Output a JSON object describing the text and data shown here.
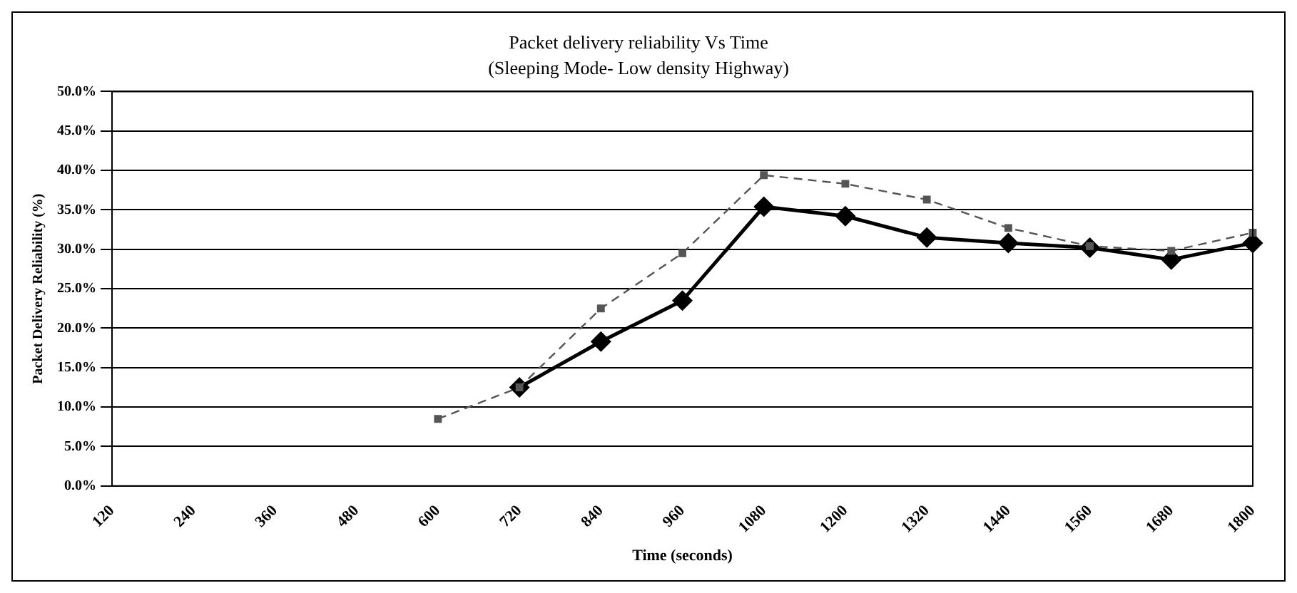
{
  "chart_data": {
    "type": "line",
    "title": "Packet delivery reliability Vs Time",
    "subtitle": "(Sleeping Mode- Low density Highway)",
    "xlabel": "Time (seconds)",
    "ylabel": "Packet Delivery Reliability (%)",
    "categories": [
      "120",
      "240",
      "360",
      "480",
      "600",
      "720",
      "840",
      "960",
      "1080",
      "1200",
      "1320",
      "1440",
      "1560",
      "1680",
      "1800"
    ],
    "series": [
      {
        "color": "#000000",
        "marker": "diamond",
        "line_style": "solid",
        "values": [
          null,
          null,
          null,
          null,
          null,
          12.5,
          18.3,
          23.5,
          35.4,
          34.2,
          31.5,
          30.8,
          30.2,
          28.7,
          30.8
        ]
      },
      {
        "color": "#555555",
        "marker": "square",
        "line_style": "dashed",
        "values": [
          null,
          null,
          null,
          null,
          8.5,
          12.5,
          22.5,
          29.5,
          39.4,
          38.3,
          36.3,
          32.7,
          30.4,
          29.8,
          32.1
        ]
      }
    ],
    "ylim": [
      0,
      50
    ],
    "yticks": [
      {
        "value": 0,
        "label": "0.0%"
      },
      {
        "value": 5,
        "label": "5.0%"
      },
      {
        "value": 10,
        "label": "10.0%"
      },
      {
        "value": 15,
        "label": "15.0%"
      },
      {
        "value": 20,
        "label": "20.0%"
      },
      {
        "value": 25,
        "label": "25.0%"
      },
      {
        "value": 30,
        "label": "30.0%"
      },
      {
        "value": 35,
        "label": "35.0%"
      },
      {
        "value": 40,
        "label": "40.0%"
      },
      {
        "value": 45,
        "label": "45.0%"
      },
      {
        "value": 50,
        "label": "50.0%"
      }
    ],
    "grid": "y",
    "legend": false
  }
}
